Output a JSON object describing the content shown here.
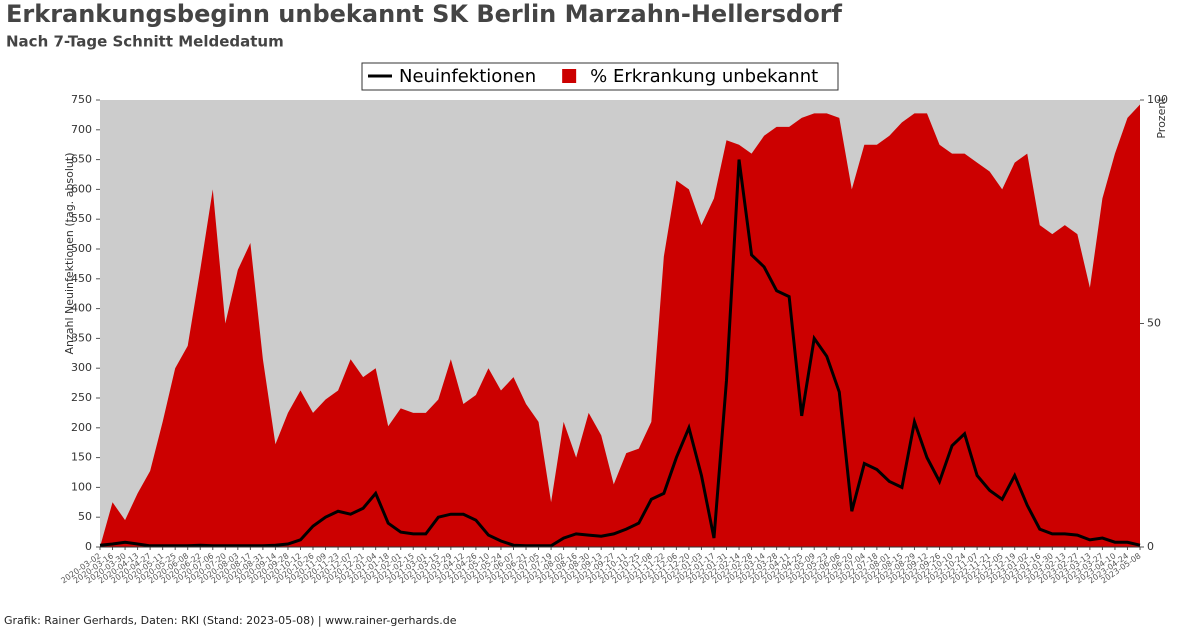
{
  "chart_data": {
    "type": "line-area",
    "title": "Erkrankungsbeginn unbekannt SK Berlin Marzahn-Hellersdorf",
    "subtitle": "Nach 7-Tage Schnitt Meldedatum",
    "y_label": "Anzahl Neuinfektionen (tag. absolut)",
    "y2_label": "Prozent",
    "footer": "Grafik: Rainer Gerhards, Daten: RKI (Stand: 2023-05-08) | www.rainer-gerhards.de",
    "x": [
      "2020-03-02",
      "2020-03-16",
      "2020-03-30",
      "2020-04-13",
      "2020-04-27",
      "2020-05-11",
      "2020-05-25",
      "2020-06-08",
      "2020-06-22",
      "2020-07-06",
      "2020-07-20",
      "2020-08-03",
      "2020-08-17",
      "2020-08-31",
      "2020-09-14",
      "2020-09-28",
      "2020-10-12",
      "2020-10-26",
      "2020-11-09",
      "2020-11-23",
      "2020-12-07",
      "2020-12-21",
      "2021-01-04",
      "2021-01-18",
      "2021-02-01",
      "2021-02-15",
      "2021-03-01",
      "2021-03-15",
      "2021-03-29",
      "2021-04-12",
      "2021-04-26",
      "2021-05-10",
      "2021-05-24",
      "2021-06-07",
      "2021-06-21",
      "2021-07-05",
      "2021-07-19",
      "2021-08-02",
      "2021-08-16",
      "2021-08-30",
      "2021-09-13",
      "2021-09-27",
      "2021-10-11",
      "2021-10-25",
      "2021-11-08",
      "2021-11-22",
      "2021-12-06",
      "2021-12-20",
      "2022-01-03",
      "2022-01-17",
      "2022-01-31",
      "2022-02-14",
      "2022-02-28",
      "2022-03-14",
      "2022-03-28",
      "2022-04-11",
      "2022-04-25",
      "2022-05-09",
      "2022-05-23",
      "2022-06-06",
      "2022-06-20",
      "2022-07-04",
      "2022-07-18",
      "2022-08-01",
      "2022-08-15",
      "2022-08-29",
      "2022-09-12",
      "2022-09-26",
      "2022-10-10",
      "2022-10-24",
      "2022-11-07",
      "2022-11-21",
      "2022-12-05",
      "2022-12-19",
      "2023-01-02",
      "2023-01-16",
      "2023-01-30",
      "2023-02-13",
      "2023-02-27",
      "2023-03-13",
      "2023-03-27",
      "2023-04-10",
      "2023-04-24",
      "2023-05-08"
    ],
    "series": [
      {
        "name": "Neuinfektionen",
        "color": "#000000",
        "kind": "line",
        "values": [
          3,
          5,
          8,
          5,
          2,
          2,
          2,
          2,
          3,
          2,
          2,
          2,
          2,
          2,
          3,
          5,
          12,
          35,
          50,
          60,
          55,
          65,
          90,
          40,
          25,
          22,
          22,
          50,
          55,
          55,
          45,
          20,
          10,
          3,
          2,
          2,
          2,
          15,
          22,
          20,
          18,
          22,
          30,
          40,
          80,
          90,
          150,
          200,
          120,
          15,
          280,
          650,
          490,
          470,
          430,
          420,
          220,
          350,
          320,
          260,
          60,
          140,
          130,
          110,
          100,
          210,
          150,
          110,
          170,
          190,
          120,
          95,
          80,
          120,
          70,
          30,
          22,
          22,
          20,
          12,
          15,
          8,
          8,
          3
        ]
      },
      {
        "name": "% Erkrankung unbekannt",
        "color": "#cc0000",
        "kind": "area",
        "axis": "y2",
        "values": [
          0,
          10,
          6,
          12,
          17,
          28,
          40,
          45,
          62,
          80,
          50,
          62,
          68,
          42,
          23,
          30,
          35,
          30,
          33,
          35,
          42,
          38,
          40,
          27,
          31,
          30,
          30,
          33,
          42,
          32,
          34,
          40,
          35,
          38,
          32,
          28,
          10,
          28,
          20,
          30,
          25,
          14,
          21,
          22,
          28,
          65,
          82,
          80,
          72,
          78,
          91,
          90,
          88,
          92,
          94,
          94,
          96,
          97,
          97,
          96,
          80,
          90,
          90,
          92,
          95,
          97,
          97,
          90,
          88,
          88,
          86,
          84,
          80,
          86,
          88,
          72,
          70,
          72,
          70,
          58,
          78,
          88,
          96,
          99
        ]
      }
    ],
    "ylim": [
      0,
      750
    ],
    "yticks": [
      0,
      50,
      100,
      150,
      200,
      250,
      300,
      350,
      400,
      450,
      500,
      550,
      600,
      650,
      700,
      750
    ],
    "y2lim": [
      0,
      100
    ],
    "y2ticks": [
      0,
      50,
      100
    ],
    "plot_background": "#cccccc"
  }
}
